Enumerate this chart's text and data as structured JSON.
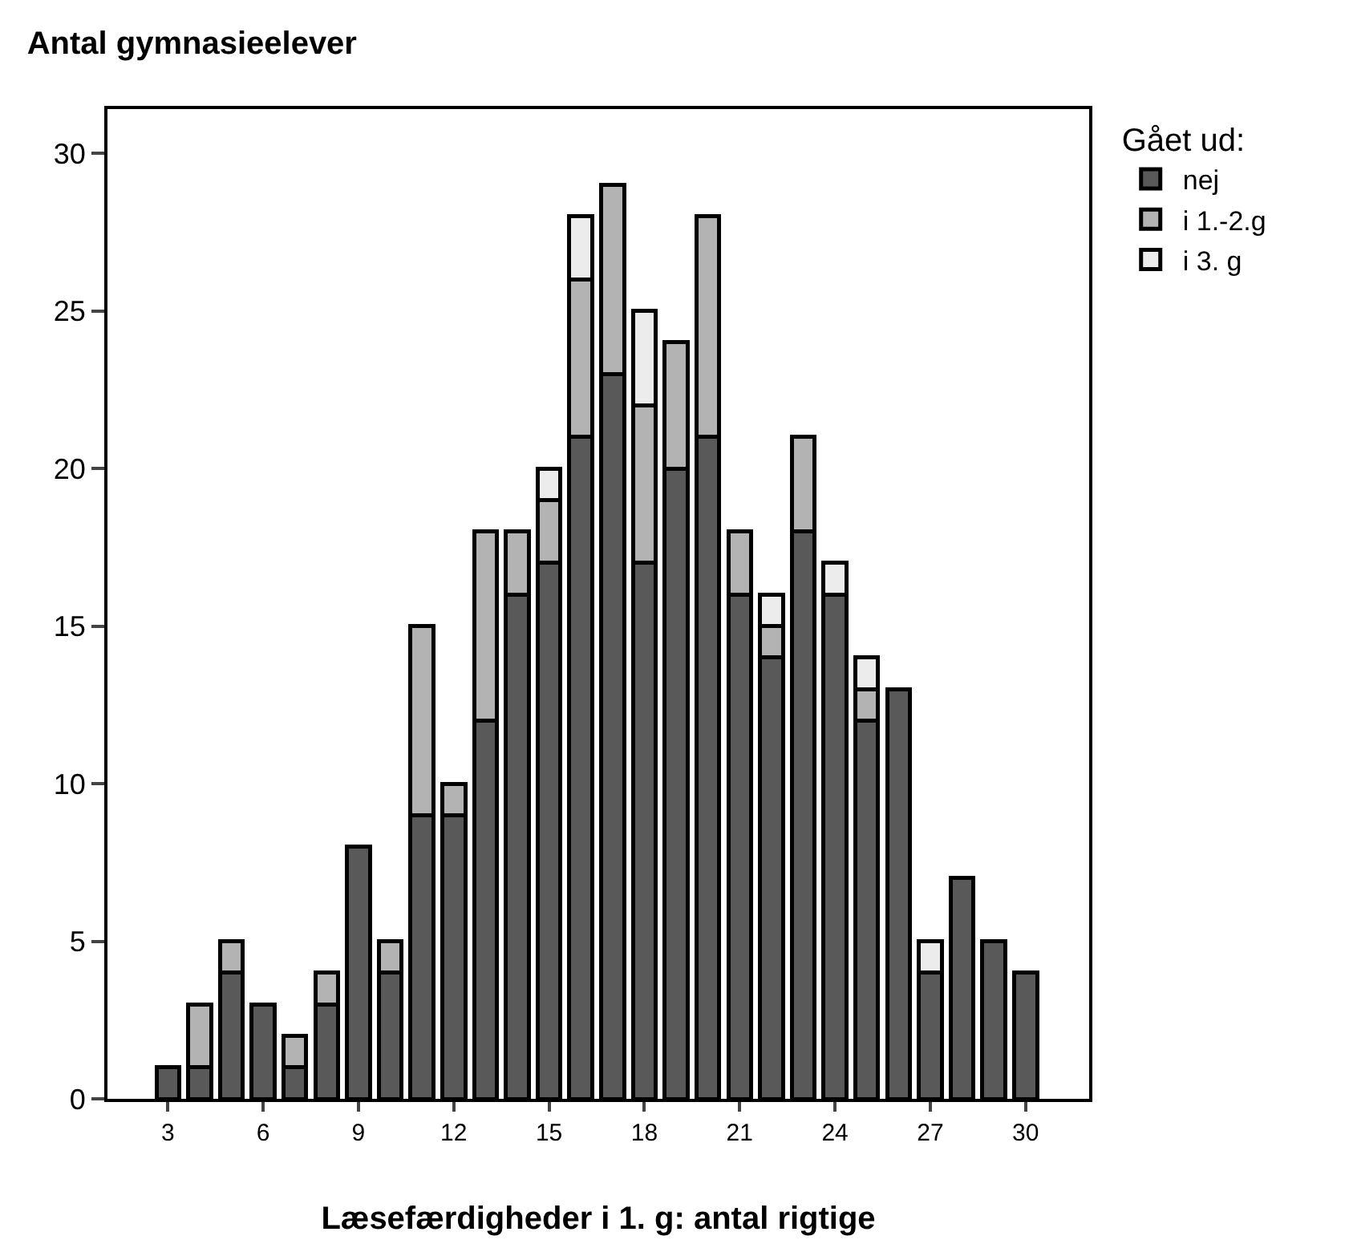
{
  "chart_data": {
    "type": "bar",
    "stacked": true,
    "title": "Antal gymnasieelever",
    "xlabel": "Læsefærdigheder i 1. g: antal rigtige",
    "legend_title": "Gået ud:",
    "x": [
      3,
      4,
      5,
      6,
      7,
      8,
      9,
      10,
      11,
      12,
      13,
      14,
      15,
      16,
      17,
      18,
      19,
      20,
      21,
      22,
      23,
      24,
      25,
      26,
      27,
      28,
      29,
      30
    ],
    "series": [
      {
        "name": "nej",
        "color": "#595959",
        "values": [
          1,
          1,
          4,
          3,
          1,
          3,
          8,
          4,
          9,
          9,
          12,
          16,
          17,
          21,
          23,
          17,
          20,
          21,
          16,
          14,
          18,
          16,
          12,
          13,
          4,
          7,
          5,
          4
        ]
      },
      {
        "name": "i 1.-2.g",
        "color": "#b3b3b3",
        "values": [
          null,
          2,
          1,
          null,
          1,
          1,
          null,
          1,
          6,
          1,
          6,
          2,
          2,
          5,
          6,
          5,
          4,
          7,
          2,
          1,
          3,
          null,
          1,
          null,
          null,
          null,
          null,
          null
        ]
      },
      {
        "name": "i 3. g",
        "color": "#ececec",
        "values": [
          null,
          null,
          null,
          null,
          null,
          null,
          null,
          null,
          null,
          null,
          null,
          null,
          1,
          2,
          null,
          3,
          null,
          null,
          null,
          1,
          null,
          1,
          1,
          null,
          1,
          null,
          null,
          null
        ]
      }
    ],
    "xlim": [
      1.1,
      32
    ],
    "xticks": [
      3,
      6,
      9,
      12,
      15,
      18,
      21,
      24,
      27,
      30
    ],
    "ylim": [
      0,
      31.4
    ],
    "yticks": [
      0,
      5,
      10,
      15,
      20,
      25,
      30
    ],
    "legend": "top right"
  }
}
